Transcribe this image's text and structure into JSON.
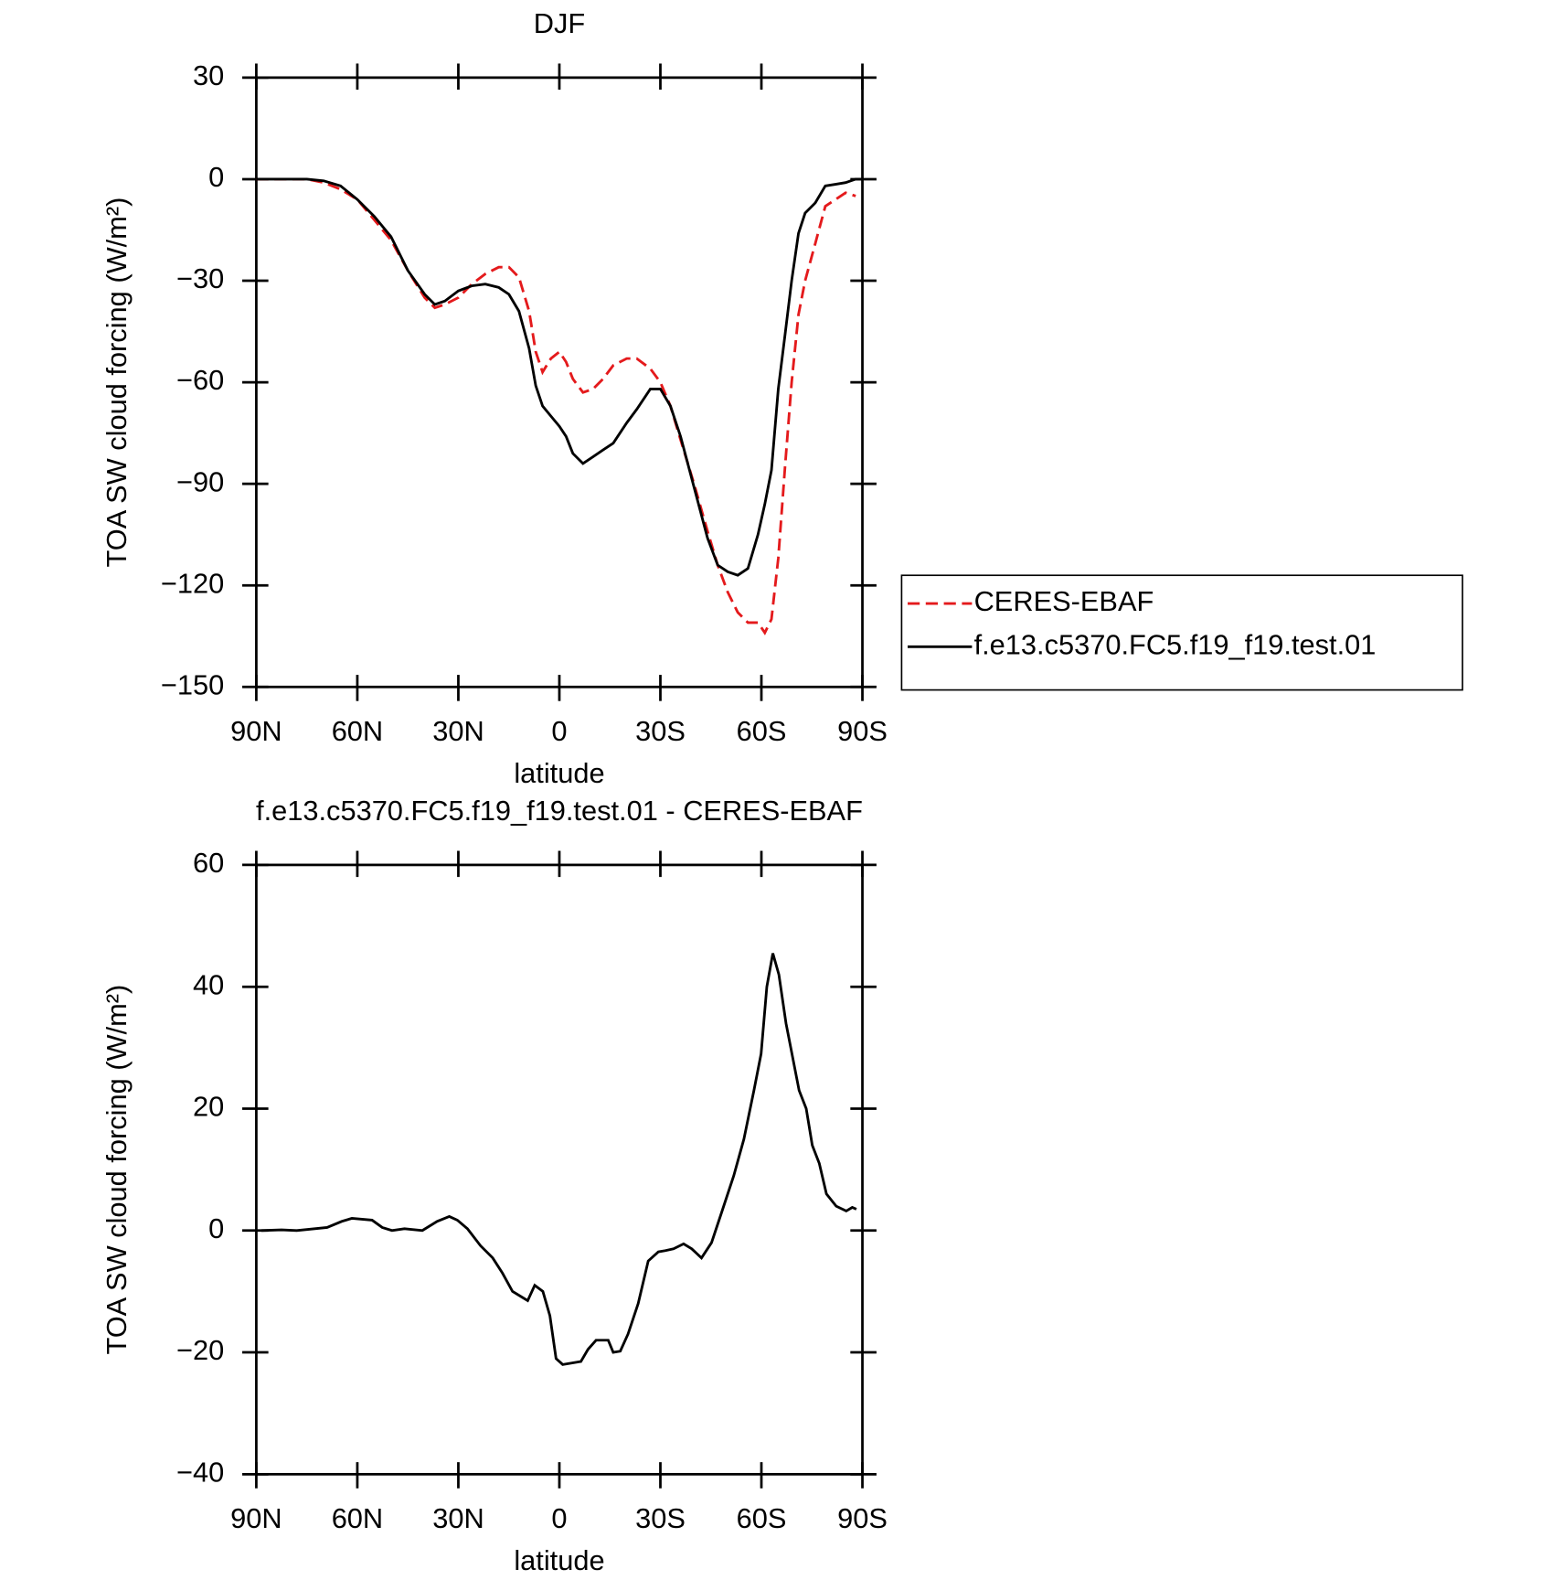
{
  "chart_data": [
    {
      "type": "line",
      "title": "DJF",
      "xlabel": "latitude",
      "ylabel": "TOA SW cloud forcing (W/m²)",
      "x": [
        90,
        80,
        75,
        70,
        65,
        60,
        55,
        50,
        45,
        40,
        37,
        34,
        30,
        26,
        22,
        18,
        15,
        12,
        9,
        7,
        5,
        2.5,
        0,
        -2,
        -4,
        -7,
        -10,
        -13,
        -16,
        -20,
        -23,
        -27,
        -30,
        -33,
        -36,
        -40,
        -44,
        -47,
        -50,
        -53,
        -56,
        -59,
        -61,
        -63,
        -65,
        -67,
        -69,
        -71,
        -73,
        -76,
        -79,
        -82,
        -85,
        -88,
        -90
      ],
      "series": [
        {
          "name": "CERES-EBAF",
          "color": "#e41a1c",
          "dash": true,
          "values": [
            0,
            0,
            0,
            -1,
            -3,
            -6,
            -12,
            -18,
            -27,
            -35,
            -38,
            -37,
            -35,
            -31,
            -28,
            -26,
            -26,
            -29,
            -39,
            -51,
            -57,
            -53,
            -51,
            -54,
            -59,
            -63,
            -62,
            -59,
            -55,
            -53,
            -53,
            -56,
            -60,
            -67,
            -77,
            -90,
            -104,
            -114,
            -122,
            -128,
            -131,
            -131,
            -134,
            -130,
            -112,
            -85,
            -60,
            -40,
            -30,
            -19,
            -8,
            -6,
            -4,
            -5,
            null
          ]
        },
        {
          "name": "f.e13.c5370.FC5.f19_f19.test.01",
          "color": "#000000",
          "dash": false,
          "values": [
            0,
            0,
            0,
            -0.5,
            -2,
            -6,
            -11,
            -17,
            -27,
            -34,
            -37,
            -36,
            -33,
            -31.5,
            -31,
            -32,
            -34,
            -39,
            -50,
            -61,
            -67,
            -70,
            -73,
            -76,
            -81,
            -84,
            -82,
            -80,
            -78,
            -72,
            -68,
            -62,
            -62,
            -67,
            -76,
            -91,
            -106,
            -114,
            -116,
            -117,
            -115,
            -105,
            -96,
            -86,
            -62,
            -46,
            -30,
            -16,
            -10,
            -7,
            -2,
            -1.5,
            -1,
            0,
            0
          ]
        }
      ],
      "xlim": [
        90,
        -90
      ],
      "xticks": [
        {
          "value": 90,
          "label": "90N"
        },
        {
          "value": 60,
          "label": "60N"
        },
        {
          "value": 30,
          "label": "30N"
        },
        0,
        {
          "value": -30,
          "label": "30S"
        },
        {
          "value": -60,
          "label": "60S"
        },
        {
          "value": -90,
          "label": "90S"
        }
      ],
      "ylim": [
        -150,
        30
      ],
      "yticks": [
        {
          "value": -150,
          "label": "−150"
        },
        {
          "value": -120,
          "label": "−120"
        },
        {
          "value": -90,
          "label": "−90"
        },
        {
          "value": -60,
          "label": "−60"
        },
        {
          "value": -30,
          "label": "−30"
        },
        0,
        30
      ],
      "legend": "right"
    },
    {
      "type": "line",
      "title": "f.e13.c5370.FC5.f19_f19.test.01 - CERES-EBAF",
      "xlabel": "latitude",
      "ylabel": "TOA SW cloud forcing (W/m²)",
      "x": [
        88.5,
        82.5,
        78,
        69,
        64.6,
        61.6,
        55.6,
        52.6,
        49.7,
        46,
        40.7,
        36.3,
        32.7,
        30.3,
        27.3,
        23.4,
        19.8,
        16.9,
        13.9,
        10.9,
        9.4,
        7.3,
        4.9,
        2.8,
        1,
        -1,
        -6.4,
        -8.5,
        -10.9,
        -14.5,
        -16,
        -18.1,
        -20.4,
        -23.4,
        -26.4,
        -29.4,
        -31.5,
        -33.9,
        -36.9,
        -39.3,
        -42.2,
        -45.2,
        -48.2,
        -51.8,
        -54.8,
        -57.8,
        -59.9,
        -61.6,
        -63.4,
        -65.2,
        -67.3,
        -71.2,
        -73.3,
        -75.1,
        -77.2,
        -79.3,
        -82.2,
        -85.2,
        -87,
        -88.2
      ],
      "values": [
        0,
        0.1,
        0,
        0.5,
        1.5,
        2,
        1.7,
        0.5,
        0,
        0.3,
        0,
        1.5,
        2.3,
        1.7,
        0.3,
        -2.5,
        -4.5,
        -7,
        -10,
        -11,
        -11.5,
        -9,
        -10,
        -14,
        -21,
        -22,
        -21.5,
        -19.5,
        -18,
        -18,
        -20,
        -19.8,
        -17,
        -12,
        -5,
        -3.5,
        -3.3,
        -3,
        -2.2,
        -3,
        -4.5,
        -2,
        3,
        9,
        15,
        23,
        29,
        40,
        45.5,
        42,
        34,
        23,
        20,
        14,
        11,
        6,
        4,
        3.2,
        3.8,
        3.5
      ],
      "color": "#000000",
      "xlim": [
        90,
        -90
      ],
      "xticks": [
        {
          "value": 90,
          "label": "90N"
        },
        {
          "value": 60,
          "label": "60N"
        },
        {
          "value": 30,
          "label": "30N"
        },
        0,
        {
          "value": -30,
          "label": "30S"
        },
        {
          "value": -60,
          "label": "60S"
        },
        {
          "value": -90,
          "label": "90S"
        }
      ],
      "ylim": [
        -40,
        60
      ],
      "yticks": [
        {
          "value": -40,
          "label": "−40"
        },
        {
          "value": -20,
          "label": "−20"
        },
        0,
        20,
        40,
        60
      ]
    }
  ]
}
